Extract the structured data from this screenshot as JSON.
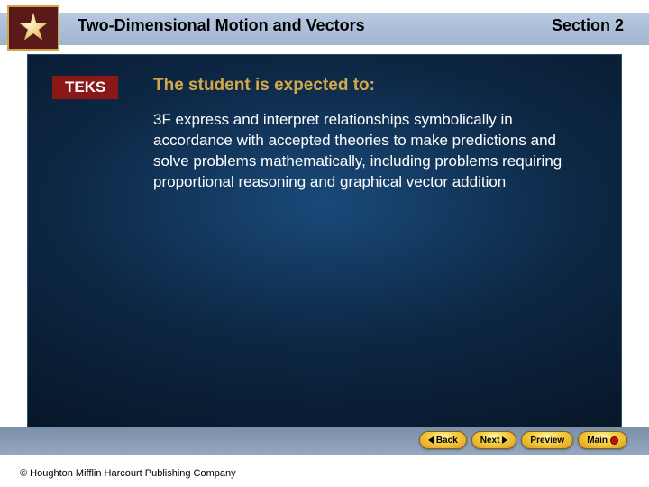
{
  "header": {
    "chapter_title": "Two-Dimensional Motion and Vectors",
    "section_label": "Section 2"
  },
  "teks": {
    "label": "TEKS",
    "label_bg_color": "#8a1818",
    "label_text_color": "#ffffff"
  },
  "content": {
    "heading": "The student is expected to:",
    "heading_color": "#d4a84a",
    "body": "3F express and interpret relationships symbolically in accordance with accepted theories to make predictions and solve problems mathematically, including problems requiring proportional reasoning and graphical vector addition",
    "body_color": "#ffffff"
  },
  "footer": {
    "copyright": "© Houghton Mifflin Harcourt Publishing Company"
  },
  "nav": {
    "back": "Back",
    "next": "Next",
    "preview": "Preview",
    "main": "Main"
  },
  "colors": {
    "header_band": "#a8bcd4",
    "panel_gradient_center": "#1a4a7a",
    "panel_gradient_edge": "#050d1a",
    "nav_button_fill": "#f8d040",
    "logo_frame": "#d4a84a",
    "logo_bg": "#5b1a1a"
  }
}
